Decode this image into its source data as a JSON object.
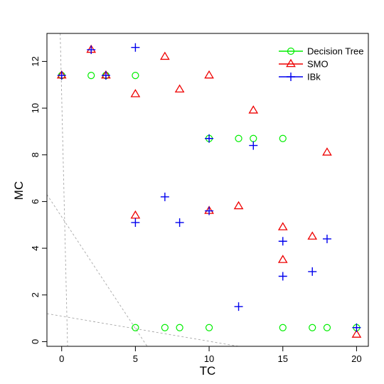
{
  "chart_data": {
    "type": "scatter",
    "title": "",
    "xlabel": "TC",
    "ylabel": "MC",
    "xlim": [
      -1,
      20.8
    ],
    "ylim": [
      -0.2,
      13.2
    ],
    "xticks": [
      0,
      5,
      10,
      15,
      20
    ],
    "yticks": [
      0,
      2,
      4,
      6,
      8,
      10,
      12
    ],
    "grid": false,
    "legend_position": "top-right",
    "series": [
      {
        "name": "Decision Tree",
        "marker": "circle",
        "color": "#00ee00",
        "points": [
          [
            0,
            11.4
          ],
          [
            2,
            11.4
          ],
          [
            3,
            11.4
          ],
          [
            5,
            11.4
          ],
          [
            10,
            8.7
          ],
          [
            12,
            8.7
          ],
          [
            13,
            8.7
          ],
          [
            15,
            8.7
          ],
          [
            5,
            0.6
          ],
          [
            7,
            0.6
          ],
          [
            8,
            0.6
          ],
          [
            10,
            0.6
          ],
          [
            15,
            0.6
          ],
          [
            17,
            0.6
          ],
          [
            18,
            0.6
          ],
          [
            20,
            0.6
          ]
        ]
      },
      {
        "name": "SMO",
        "marker": "triangle",
        "color": "#ee0000",
        "points": [
          [
            0,
            11.4
          ],
          [
            2,
            12.5
          ],
          [
            3,
            11.4
          ],
          [
            5,
            10.6
          ],
          [
            7,
            12.2
          ],
          [
            8,
            10.8
          ],
          [
            10,
            11.4
          ],
          [
            13,
            9.9
          ],
          [
            18,
            8.1
          ],
          [
            5,
            5.4
          ],
          [
            10,
            5.6
          ],
          [
            12,
            5.8
          ],
          [
            15,
            4.9
          ],
          [
            15,
            3.5
          ],
          [
            17,
            4.5
          ],
          [
            20,
            0.3
          ]
        ]
      },
      {
        "name": "IBk",
        "marker": "plus",
        "color": "#0000ee",
        "points": [
          [
            0,
            11.4
          ],
          [
            2,
            12.5
          ],
          [
            3,
            11.4
          ],
          [
            5,
            12.6
          ],
          [
            10,
            8.7
          ],
          [
            13,
            8.4
          ],
          [
            7,
            6.2
          ],
          [
            5,
            5.1
          ],
          [
            8,
            5.1
          ],
          [
            10,
            5.6
          ],
          [
            15,
            4.3
          ],
          [
            18,
            4.4
          ],
          [
            15,
            2.8
          ],
          [
            17,
            3.0
          ],
          [
            12,
            1.5
          ],
          [
            20,
            0.6
          ]
        ]
      }
    ],
    "reference_lines": [
      {
        "x": [
          -0.1,
          0.4
        ],
        "y": [
          13.2,
          -0.2
        ]
      },
      {
        "x": [
          -1,
          5.8
        ],
        "y": [
          6.3,
          -0.2
        ]
      },
      {
        "x": [
          -1,
          12.0
        ],
        "y": [
          1.2,
          -0.2
        ]
      }
    ]
  }
}
